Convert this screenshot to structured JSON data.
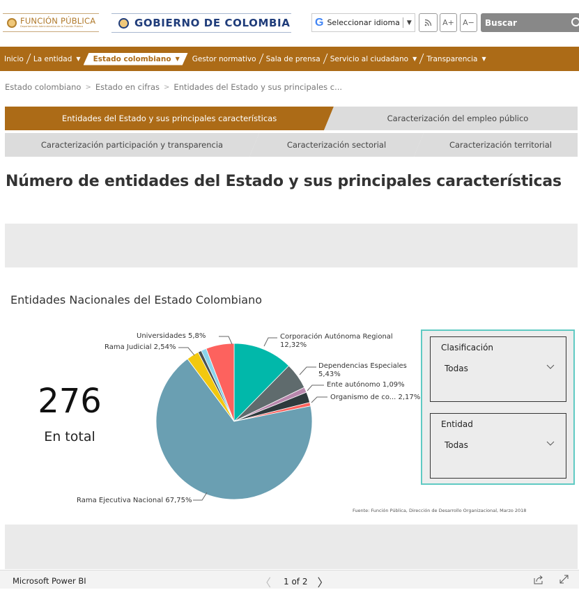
{
  "header": {
    "logo_funcion_publica": {
      "title": "FUNCIÓN PÚBLICA",
      "subtitle": "Departamento Administrativo de la Función Pública"
    },
    "logo_gobierno": {
      "title": "GOBIERNO DE COLOMBIA"
    },
    "language_select": {
      "google_glyph": "G",
      "label": "Seleccionar idioma",
      "arrow": "▼"
    },
    "rss_label": "⟟",
    "font_increase_label": "A+",
    "font_decrease_label": "A−",
    "search": {
      "placeholder": "Buscar"
    }
  },
  "nav": {
    "items": [
      {
        "label": "Inicio",
        "has_caret": false,
        "active": false
      },
      {
        "label": "La entidad",
        "has_caret": true,
        "active": false
      },
      {
        "label": "Estado colombiano",
        "has_caret": true,
        "active": true
      },
      {
        "label": "Gestor normativo",
        "has_caret": false,
        "active": false
      },
      {
        "label": "Sala de prensa",
        "has_caret": false,
        "active": false
      },
      {
        "label": "Servicio al ciudadano",
        "has_caret": true,
        "active": false
      },
      {
        "label": "Transparencia",
        "has_caret": true,
        "active": false
      }
    ],
    "caret": "▼",
    "slash": "/"
  },
  "breadcrumb": {
    "items": [
      "Estado colombiano",
      "Estado en cifras",
      "Entidades del Estado y sus principales c..."
    ],
    "separator": ">"
  },
  "tabs": [
    {
      "label": "Entidades del Estado y sus principales características",
      "active": true
    },
    {
      "label": "Caracterización del empleo público",
      "active": false
    },
    {
      "label": "Caracterización participación y transparencia",
      "active": false
    },
    {
      "label": "Caracterización sectorial",
      "active": false
    },
    {
      "label": "Caracterización territorial",
      "active": false
    }
  ],
  "page_title": "Número de entidades del Estado y sus principales características",
  "report": {
    "title": "Entidades Nacionales del Estado Colombiano",
    "kpi": {
      "value": "276",
      "label": "En total"
    },
    "slicers": [
      {
        "title": "Clasificación",
        "value": "Todas"
      },
      {
        "title": "Entidad",
        "value": "Todas"
      }
    ],
    "source": "Fuente: Función Pública, Dirección de Desarrollo Organizacional, Marzo 2018",
    "colors": {
      "accent_brown": "#ac6b17",
      "slicer_border": "#5fcac3"
    }
  },
  "powerbi_footer": {
    "brand": "Microsoft Power BI",
    "page_indicator": "1 of 2",
    "prev": "〈",
    "next": "〉"
  },
  "chart_data": {
    "type": "pie",
    "title": "Entidades Nacionales del Estado Colombiano",
    "start_angle": "12 o'clock, clockwise",
    "slices": [
      {
        "name": "Corporación Autónoma Regional",
        "value": 12.32,
        "label": "Corporación Autónoma Regional 12,32%",
        "color": "#01b8aa"
      },
      {
        "name": "Dependencias Especiales",
        "value": 5.43,
        "label": "Dependencias Especiales 5,43%",
        "color": "#5f6b6d"
      },
      {
        "name": "Ente autónomo",
        "value": 1.09,
        "label": "Ente autónomo 1,09%",
        "color": "#b887ad"
      },
      {
        "name": "Organismo de co...",
        "value": 2.17,
        "label": "Organismo de co... 2,17%",
        "color": "#2e3a3d"
      },
      {
        "name": "(unlabeled)",
        "value": 0.72,
        "label": "",
        "color": "#fd625e"
      },
      {
        "name": "Rama Ejecutiva Nacional",
        "value": 67.75,
        "label": "Rama Ejecutiva Nacional 67,75%",
        "color": "#6a9fb2"
      },
      {
        "name": "Rama Judicial",
        "value": 2.54,
        "label": "Rama Judicial 2,54%",
        "color": "#f2c80f"
      },
      {
        "name": "(unlabeled)",
        "value": 0.72,
        "label": "",
        "color": "#4a5254"
      },
      {
        "name": "(unlabeled)",
        "value": 1.09,
        "label": "",
        "color": "#8ad4eb"
      },
      {
        "name": "Universidades",
        "value": 5.8,
        "label": "Universidades 5,8%",
        "color": "#fd625e"
      }
    ],
    "legend": "none (data labels with leader lines)"
  }
}
